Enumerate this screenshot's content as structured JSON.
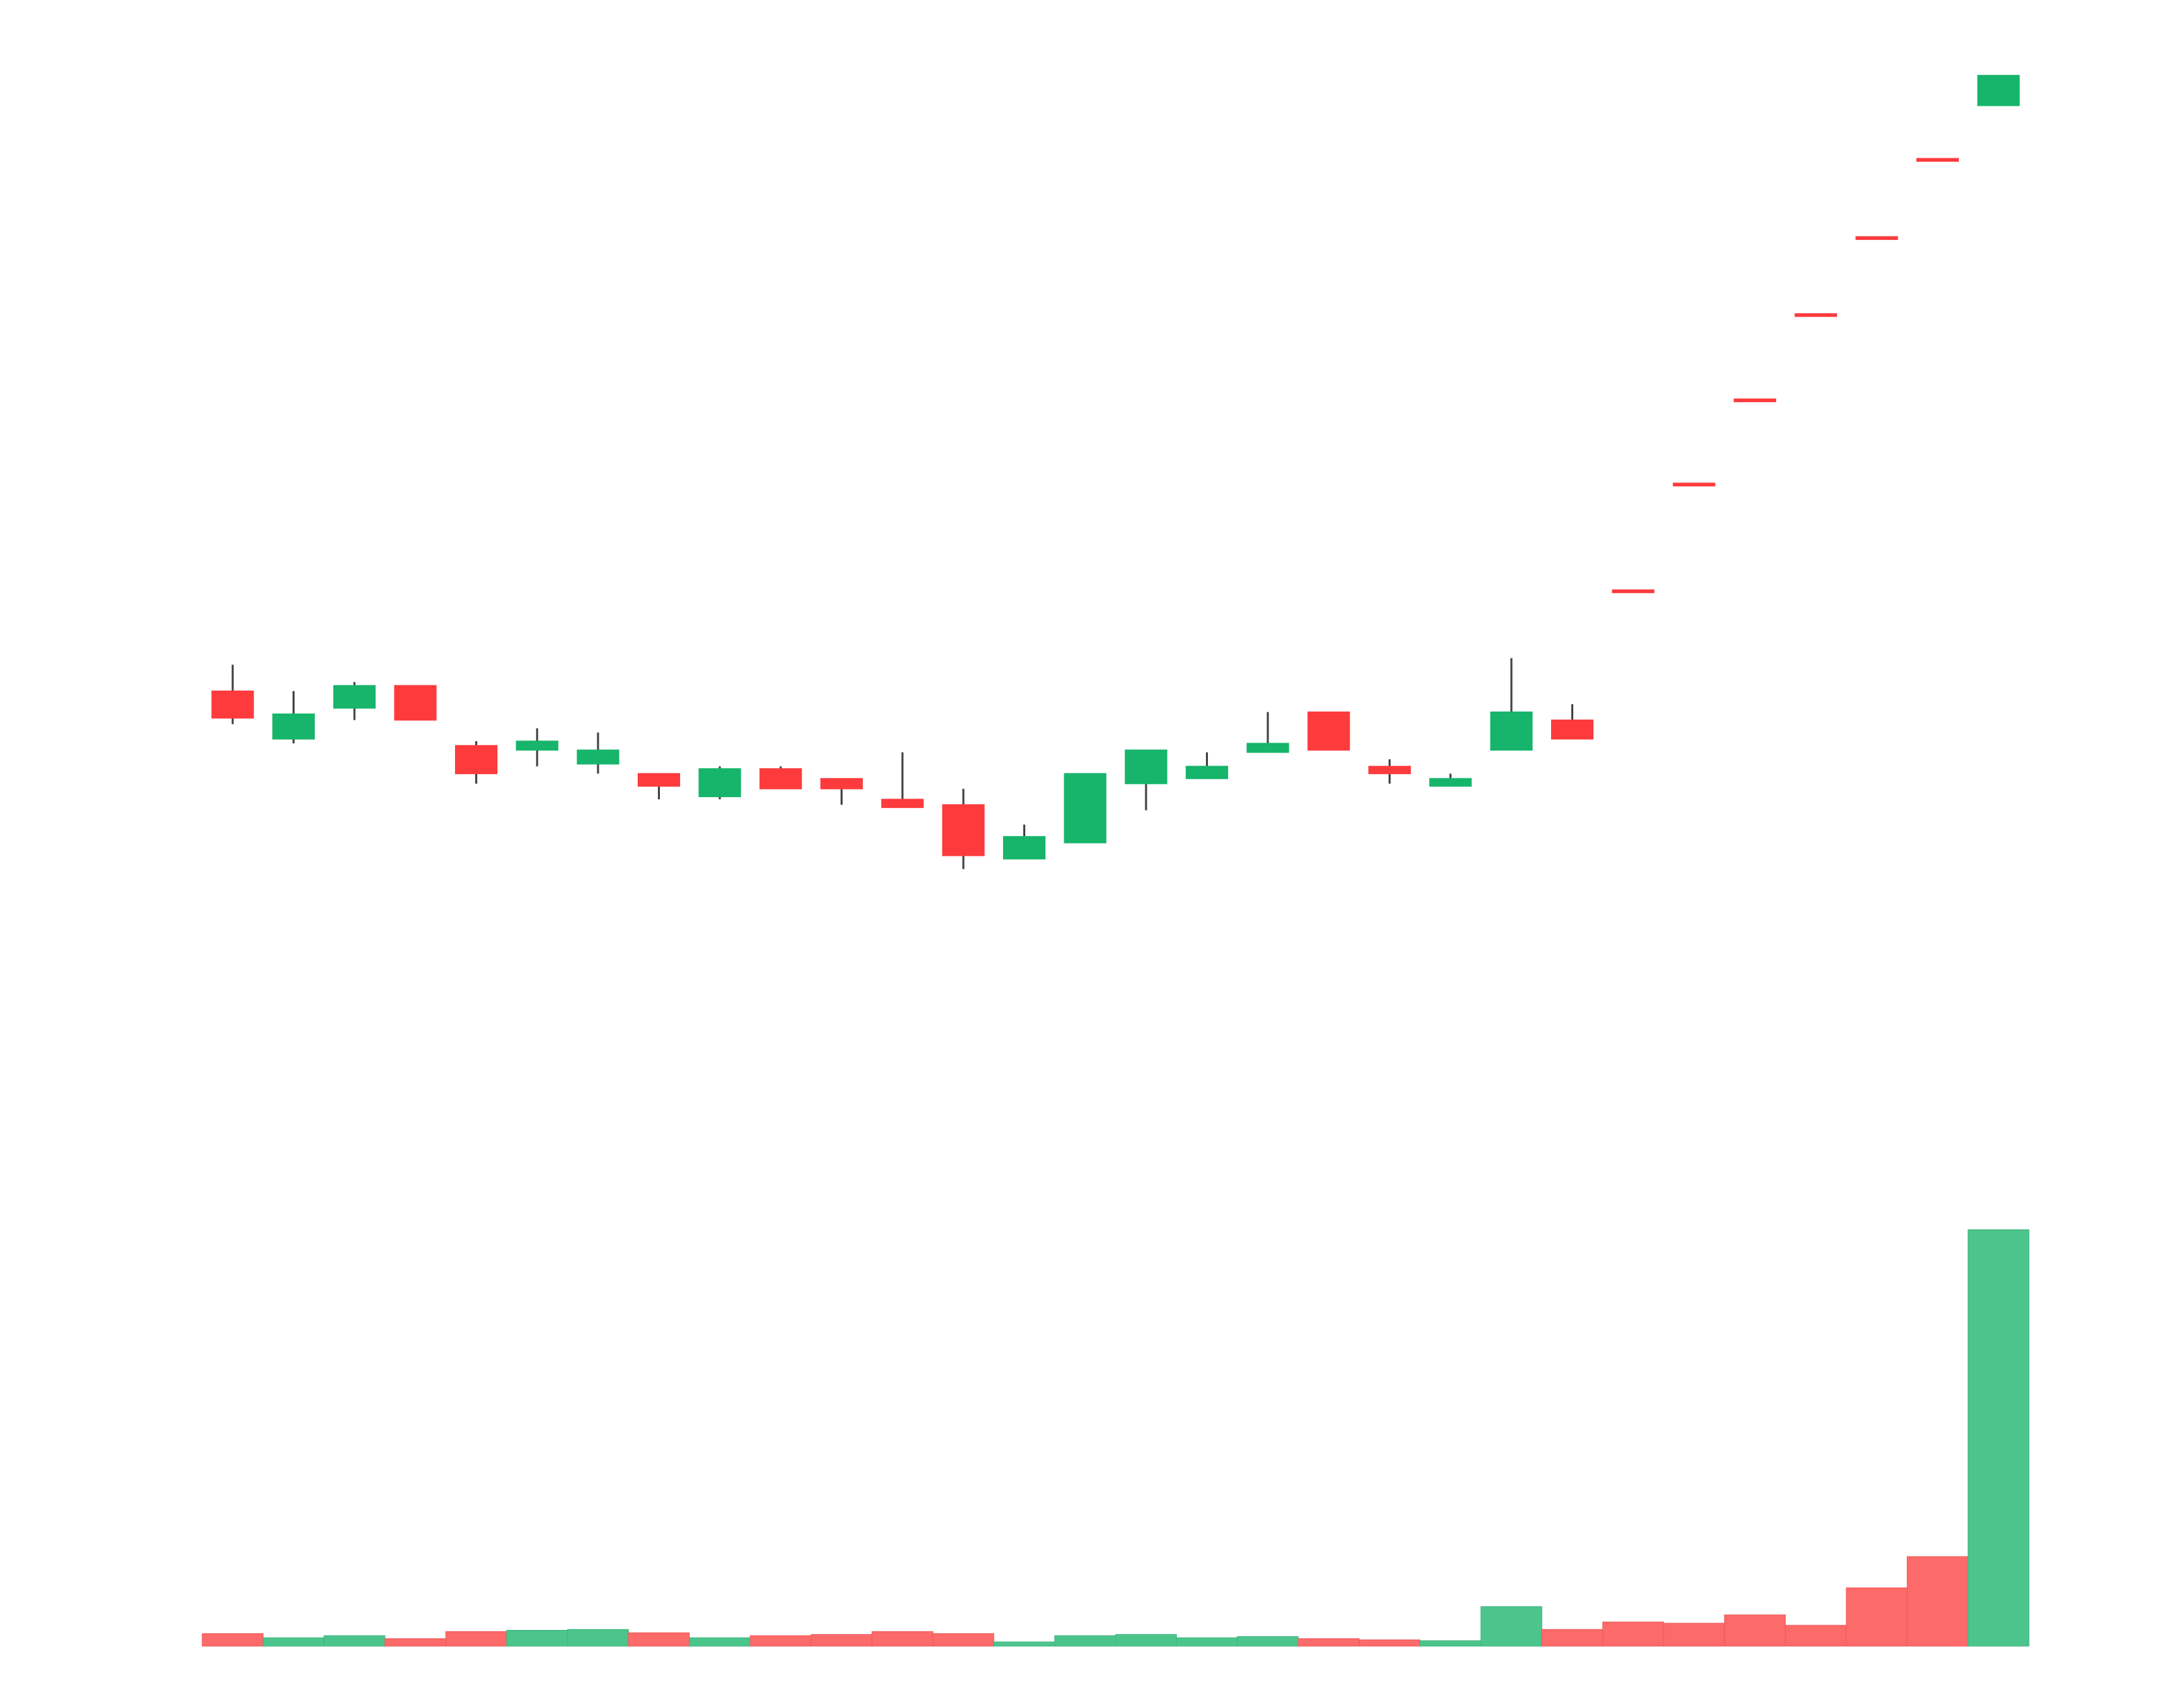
{
  "chart_data": {
    "type": "candlestick",
    "title": "",
    "xlabel": "",
    "ylabel": "",
    "grid": false,
    "legend": "none",
    "ylim": [
      0.3,
      14
    ],
    "volume_ylim": [
      0,
      100
    ],
    "colors": {
      "up": "#16b56b",
      "down": "#fd3b3d",
      "wick": "#444444",
      "up_volume": "#4bc58c",
      "down_volume": "#fd6a6a"
    },
    "candles": [
      {
        "open": 1.55,
        "close": 1.41,
        "high": 1.7,
        "low": 1.38,
        "up": false,
        "volume": 3.0
      },
      {
        "open": 1.31,
        "close": 1.43,
        "high": 1.55,
        "low": 1.29,
        "up": true,
        "volume": 2.0
      },
      {
        "open": 1.46,
        "close": 1.58,
        "high": 1.6,
        "low": 1.4,
        "up": true,
        "volume": 2.5
      },
      {
        "open": 1.58,
        "close": 1.4,
        "high": 1.58,
        "low": 1.4,
        "up": false,
        "volume": 1.8
      },
      {
        "open": 1.28,
        "close": 1.16,
        "high": 1.3,
        "low": 1.12,
        "up": false,
        "volume": 3.5
      },
      {
        "open": 1.26,
        "close": 1.3,
        "high": 1.36,
        "low": 1.19,
        "up": true,
        "volume": 3.8
      },
      {
        "open": 1.2,
        "close": 1.26,
        "high": 1.34,
        "low": 1.16,
        "up": true,
        "volume": 4.0
      },
      {
        "open": 1.16,
        "close": 1.11,
        "high": 1.16,
        "low": 1.06,
        "up": false,
        "volume": 3.2
      },
      {
        "open": 1.07,
        "close": 1.18,
        "high": 1.19,
        "low": 1.06,
        "up": true,
        "volume": 2.0
      },
      {
        "open": 1.18,
        "close": 1.1,
        "high": 1.19,
        "low": 1.1,
        "up": false,
        "volume": 2.5
      },
      {
        "open": 1.14,
        "close": 1.1,
        "high": 1.14,
        "low": 1.04,
        "up": false,
        "volume": 2.8
      },
      {
        "open": 1.06,
        "close": 1.03,
        "high": 1.25,
        "low": 1.03,
        "up": false,
        "volume": 3.5
      },
      {
        "open": 1.04,
        "close": 0.87,
        "high": 1.1,
        "low": 0.83,
        "up": false,
        "volume": 3.0
      },
      {
        "open": 0.86,
        "close": 0.93,
        "high": 0.97,
        "low": 0.86,
        "up": true,
        "volume": 1.0
      },
      {
        "open": 0.91,
        "close": 1.16,
        "high": 1.16,
        "low": 0.91,
        "up": true,
        "volume": 2.5
      },
      {
        "open": 1.12,
        "close": 1.26,
        "high": 1.26,
        "low": 1.02,
        "up": true,
        "volume": 2.8
      },
      {
        "open": 1.14,
        "close": 1.19,
        "high": 1.25,
        "low": 1.14,
        "up": true,
        "volume": 2.0
      },
      {
        "open": 1.25,
        "close": 1.29,
        "high": 1.44,
        "low": 1.25,
        "up": true,
        "volume": 2.3
      },
      {
        "open": 1.44,
        "close": 1.26,
        "high": 1.44,
        "low": 1.26,
        "up": false,
        "volume": 1.8
      },
      {
        "open": 1.19,
        "close": 1.16,
        "high": 1.22,
        "low": 1.12,
        "up": false,
        "volume": 1.5
      },
      {
        "open": 1.11,
        "close": 1.14,
        "high": 1.16,
        "low": 1.11,
        "up": true,
        "volume": 1.3
      },
      {
        "open": 1.26,
        "close": 1.44,
        "high": 1.74,
        "low": 1.26,
        "up": true,
        "volume": 9.5
      },
      {
        "open": 1.4,
        "close": 1.31,
        "high": 1.48,
        "low": 1.31,
        "up": false,
        "volume": 4.0
      },
      {
        "open": 2.2,
        "close": 2.2,
        "high": 2.2,
        "low": 2.2,
        "up": false,
        "volume": 5.8
      },
      {
        "open": 3.2,
        "close": 3.2,
        "high": 3.2,
        "low": 3.2,
        "up": false,
        "volume": 5.5
      },
      {
        "open": 4.3,
        "close": 4.3,
        "high": 4.3,
        "low": 4.3,
        "up": false,
        "volume": 7.5
      },
      {
        "open": 5.8,
        "close": 5.8,
        "high": 5.8,
        "low": 5.8,
        "up": false,
        "volume": 5.0
      },
      {
        "open": 7.6,
        "close": 7.6,
        "high": 7.6,
        "low": 7.6,
        "up": false,
        "volume": 14.0
      },
      {
        "open": 10.0,
        "close": 10.0,
        "high": 10.0,
        "low": 10.0,
        "up": false,
        "volume": 21.5
      },
      {
        "open": 12.1,
        "close": 13.45,
        "high": 13.45,
        "low": 12.1,
        "up": true,
        "volume": 100.0
      }
    ]
  }
}
